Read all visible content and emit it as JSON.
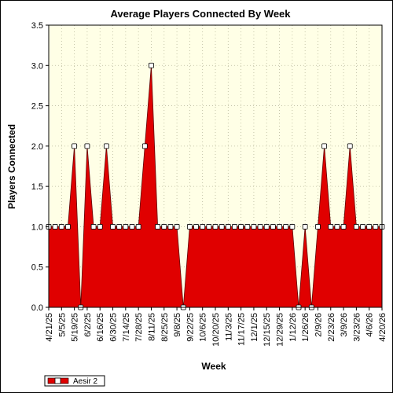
{
  "chart_data": {
    "type": "area",
    "title": "Average Players Connected By Week",
    "xlabel": "Week",
    "ylabel": "Players Connected",
    "ylim": [
      0,
      3.5
    ],
    "yticks": [
      "0.0",
      "0.5",
      "1.0",
      "1.5",
      "2.0",
      "2.5",
      "3.0",
      "3.5"
    ],
    "xtick_labels": [
      "4/21/25",
      "5/5/25",
      "5/19/25",
      "6/2/25",
      "6/16/25",
      "6/30/25",
      "7/14/25",
      "7/28/25",
      "8/11/25",
      "8/25/25",
      "9/8/25",
      "9/22/25",
      "10/6/25",
      "10/20/25",
      "11/3/25",
      "11/17/25",
      "12/1/25",
      "12/15/25",
      "12/29/25",
      "1/12/26",
      "1/26/26",
      "2/9/26",
      "2/23/26",
      "3/9/26",
      "3/23/26",
      "4/6/26",
      "4/20/26"
    ],
    "grid": true,
    "legend_position": "bottom-left",
    "background_color": "#ffffe6",
    "series": [
      {
        "name": "Aesir 2",
        "color": "#e00000",
        "values": [
          1,
          1,
          1,
          1,
          2,
          0,
          2,
          1,
          1,
          2,
          1,
          1,
          1,
          1,
          1,
          2,
          3,
          1,
          1,
          1,
          1,
          0,
          1,
          1,
          1,
          1,
          1,
          1,
          1,
          1,
          1,
          1,
          1,
          1,
          1,
          1,
          1,
          1,
          1,
          0,
          1,
          0,
          1,
          2,
          1,
          1,
          1,
          2,
          1,
          1,
          1,
          1,
          1
        ]
      }
    ]
  }
}
